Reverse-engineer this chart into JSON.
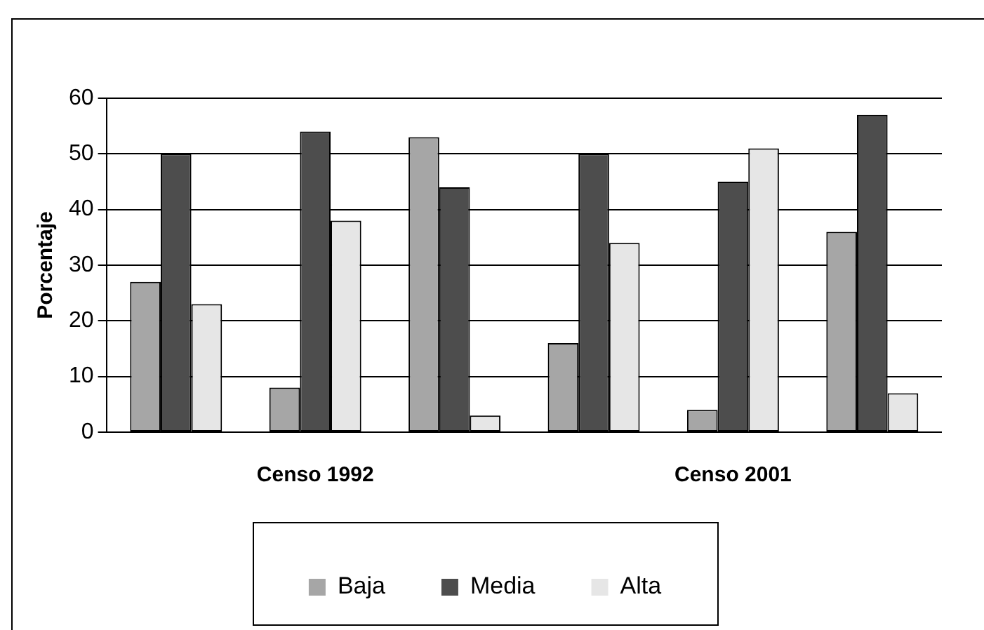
{
  "chart_data": {
    "type": "bar",
    "ylabel": "Porcentaje",
    "categories": [
      null,
      "Censo 1992",
      null,
      null,
      "Censo 2001",
      null
    ],
    "series": [
      {
        "name": "Baja",
        "color": "#a6a6a6",
        "values": [
          27,
          8,
          53,
          16,
          4,
          36
        ]
      },
      {
        "name": "Media",
        "color": "#4d4d4d",
        "values": [
          50,
          54,
          44,
          50,
          45,
          57
        ]
      },
      {
        "name": "Alta",
        "color": "#e6e6e6",
        "values": [
          23,
          38,
          3,
          34,
          51,
          7
        ]
      }
    ],
    "ylim": [
      0,
      60
    ],
    "yticks": [
      0,
      10,
      20,
      30,
      40,
      50,
      60
    ],
    "grid": "y",
    "legend": "bottom"
  }
}
